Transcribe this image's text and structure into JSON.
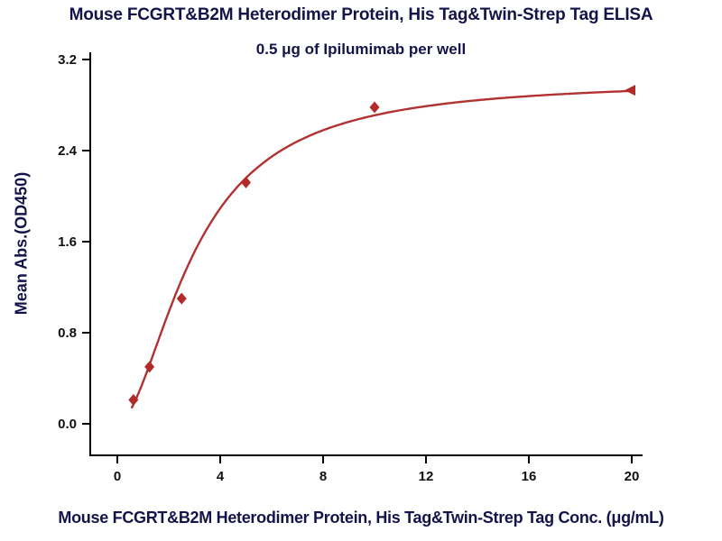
{
  "chart_data": {
    "type": "scatter",
    "title": "Mouse FCGRT&B2M Heterodimer Protein, His Tag&Twin-Strep Tag ELISA",
    "subtitle": "0.5 μg of Ipilumimab per well",
    "xlabel": "Mouse FCGRT&B2M Heterodimer Protein, His Tag&Twin-Strep Tag Conc. (μg/mL)",
    "ylabel": "Mean Abs.(OD450)",
    "x": [
      0.625,
      1.25,
      2.5,
      5,
      10,
      20
    ],
    "y": [
      0.21,
      0.5,
      1.1,
      2.12,
      2.78,
      2.93
    ],
    "markers": [
      "diamond",
      "diamond",
      "diamond",
      "diamond",
      "diamond",
      "triangle-left"
    ],
    "fit": {
      "model": "4PL",
      "bottom": 0,
      "top": 3.02,
      "ec50": 3.0,
      "hill": 1.8
    },
    "xticks": [
      0,
      4,
      8,
      12,
      16,
      20
    ],
    "yticks": [
      "0.0",
      "0.8",
      "1.6",
      "2.4",
      "3.2"
    ],
    "xlim": [
      0,
      20
    ],
    "ylim": [
      0,
      3.2
    ],
    "grid": false,
    "legend": "none",
    "curve_color": "#b23232",
    "point_color": "#b22a2a",
    "axis_color": "#000000",
    "text_color": "#14144b"
  }
}
